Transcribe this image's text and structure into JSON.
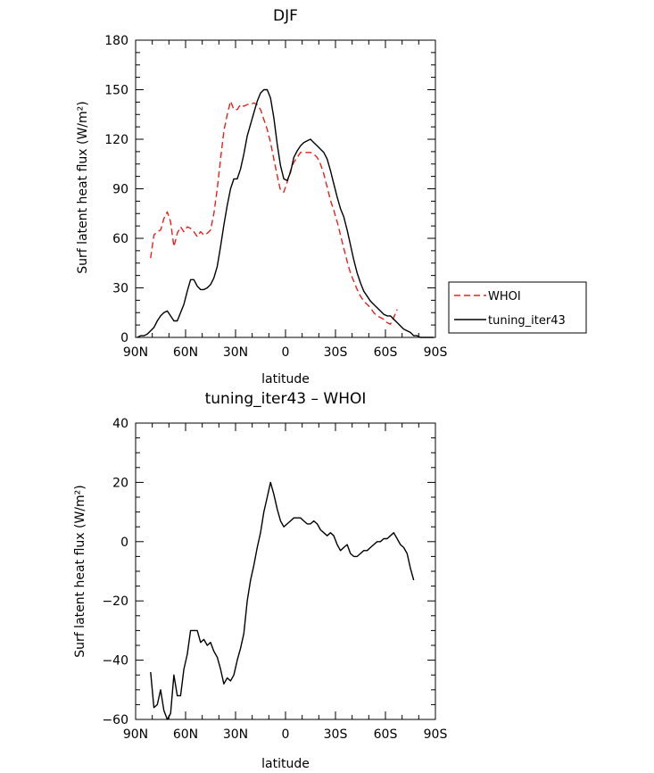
{
  "chart_data": [
    {
      "type": "line",
      "title": "DJF",
      "xlabel": "latitude",
      "ylabel": "Surf latent heat flux (W/m²)",
      "xlim": [
        90,
        -90
      ],
      "ylim": [
        0,
        180
      ],
      "yticks": [
        0,
        30,
        60,
        90,
        120,
        150,
        180
      ],
      "xticks": [
        90,
        60,
        30,
        0,
        -30,
        -60,
        -90
      ],
      "xtick_labels": [
        "90N",
        "60N",
        "30N",
        "0",
        "30S",
        "60S",
        "90S"
      ],
      "legend_position": "right-outside",
      "series": [
        {
          "name": "WHOI",
          "color": "#e8201e",
          "dash": "dashed",
          "x": [
            81,
            79,
            77,
            75,
            73,
            71,
            69,
            67,
            65,
            63,
            61,
            59,
            57,
            55,
            53,
            51,
            49,
            47,
            45,
            43,
            41,
            39,
            37,
            35,
            33,
            31,
            29,
            27,
            25,
            23,
            21,
            19,
            17,
            15,
            13,
            11,
            9,
            7,
            5,
            3,
            1,
            -1,
            -3,
            -5,
            -7,
            -9,
            -11,
            -13,
            -15,
            -17,
            -19,
            -21,
            -23,
            -25,
            -27,
            -29,
            -31,
            -33,
            -35,
            -37,
            -39,
            -41,
            -43,
            -45,
            -47,
            -49,
            -51,
            -53,
            -55,
            -57,
            -59,
            -61,
            -63,
            -65,
            -67,
            -69,
            -71,
            -73,
            -75,
            -77
          ],
          "y": [
            48,
            62,
            64,
            65,
            72,
            76,
            70,
            55,
            63,
            67,
            64,
            67,
            66,
            64,
            61,
            64,
            62,
            63,
            65,
            75,
            90,
            108,
            125,
            135,
            143,
            138,
            138,
            141,
            140,
            141,
            141,
            142,
            141,
            138,
            132,
            126,
            118,
            108,
            98,
            89,
            88,
            94,
            101,
            106,
            109,
            112,
            112,
            112,
            112,
            111,
            109,
            105,
            99,
            91,
            83,
            77,
            70,
            62,
            54,
            46,
            39,
            34,
            29,
            25,
            22,
            20,
            18,
            15,
            13,
            12,
            11,
            9,
            8,
            12,
            17,
            null,
            null,
            null,
            null,
            null
          ]
        },
        {
          "name": "tuning_iter43",
          "color": "#000000",
          "dash": "solid",
          "x": [
            89,
            87,
            85,
            83,
            81,
            79,
            77,
            75,
            73,
            71,
            69,
            67,
            65,
            63,
            61,
            59,
            57,
            55,
            53,
            51,
            49,
            47,
            45,
            43,
            41,
            39,
            37,
            35,
            33,
            31,
            29,
            27,
            25,
            23,
            21,
            19,
            17,
            15,
            13,
            11,
            9,
            7,
            5,
            3,
            1,
            -1,
            -3,
            -5,
            -7,
            -9,
            -11,
            -13,
            -15,
            -17,
            -19,
            -21,
            -23,
            -25,
            -27,
            -29,
            -31,
            -33,
            -35,
            -37,
            -39,
            -41,
            -43,
            -45,
            -47,
            -49,
            -51,
            -53,
            -55,
            -57,
            -59,
            -61,
            -63,
            -65,
            -67,
            -69,
            -71,
            -73,
            -75,
            -77,
            -79,
            -81,
            -83,
            -85,
            -87,
            -89
          ],
          "y": [
            0,
            1,
            1,
            2,
            4,
            6,
            10,
            13,
            15,
            16,
            13,
            10,
            10,
            15,
            20,
            28,
            35,
            35,
            31,
            29,
            29,
            30,
            32,
            36,
            43,
            55,
            68,
            80,
            90,
            96,
            96,
            102,
            111,
            122,
            129,
            136,
            143,
            148,
            150,
            150,
            145,
            133,
            117,
            104,
            96,
            95,
            100,
            109,
            113,
            116,
            118,
            119,
            120,
            118,
            116,
            114,
            112,
            108,
            101,
            93,
            85,
            78,
            73,
            65,
            56,
            47,
            39,
            33,
            28,
            25,
            22,
            20,
            18,
            16,
            14,
            13,
            13,
            11,
            9,
            7,
            5,
            4,
            3,
            1,
            1,
            0,
            0,
            0,
            0,
            0
          ]
        }
      ]
    },
    {
      "type": "line",
      "title": "tuning_iter43 – WHOI",
      "xlabel": "latitude",
      "ylabel": "Surf latent heat flux (W/m²)",
      "xlim": [
        90,
        -90
      ],
      "ylim": [
        -60,
        40
      ],
      "yticks": [
        -60,
        -40,
        -20,
        0,
        20,
        40
      ],
      "ytick_labels": [
        "−60",
        "−40",
        "−20",
        "0",
        "20",
        "40"
      ],
      "xticks": [
        90,
        60,
        30,
        0,
        -30,
        -60,
        -90
      ],
      "xtick_labels": [
        "90N",
        "60N",
        "30N",
        "0",
        "30S",
        "60S",
        "90S"
      ],
      "series": [
        {
          "name": "",
          "color": "#000000",
          "dash": "solid",
          "x": [
            81,
            79,
            77,
            75,
            73,
            71,
            69,
            67,
            65,
            63,
            61,
            59,
            57,
            55,
            53,
            51,
            49,
            47,
            45,
            43,
            41,
            39,
            37,
            35,
            33,
            31,
            29,
            27,
            25,
            23,
            21,
            19,
            17,
            15,
            13,
            11,
            9,
            7,
            5,
            3,
            1,
            -1,
            -3,
            -5,
            -7,
            -9,
            -11,
            -13,
            -15,
            -17,
            -19,
            -21,
            -23,
            -25,
            -27,
            -29,
            -31,
            -33,
            -35,
            -37,
            -39,
            -41,
            -43,
            -45,
            -47,
            -49,
            -51,
            -53,
            -55,
            -57,
            -59,
            -61,
            -63,
            -65,
            -67,
            -69,
            -71,
            -73,
            -75,
            -77
          ],
          "y": [
            -44,
            -56,
            -55,
            -50,
            -57,
            -60,
            -58,
            -45,
            -52,
            -52,
            -43,
            -38,
            -30,
            -30,
            -30,
            -34,
            -33,
            -35,
            -34,
            -37,
            -39,
            -43,
            -48,
            -46,
            -47,
            -45,
            -40,
            -36,
            -31,
            -20,
            -13,
            -8,
            -2,
            3,
            10,
            15,
            20,
            16,
            11,
            7,
            5,
            6,
            7,
            8,
            8,
            8,
            7,
            6,
            6,
            7,
            6,
            4,
            3,
            2,
            3,
            2,
            -1,
            -3,
            -2,
            -1,
            -4,
            -5,
            -5,
            -4,
            -3,
            -3,
            -2,
            -1,
            0,
            0,
            1,
            1,
            2,
            3,
            1,
            -1,
            -2,
            -4,
            -9,
            -13
          ]
        }
      ]
    }
  ]
}
